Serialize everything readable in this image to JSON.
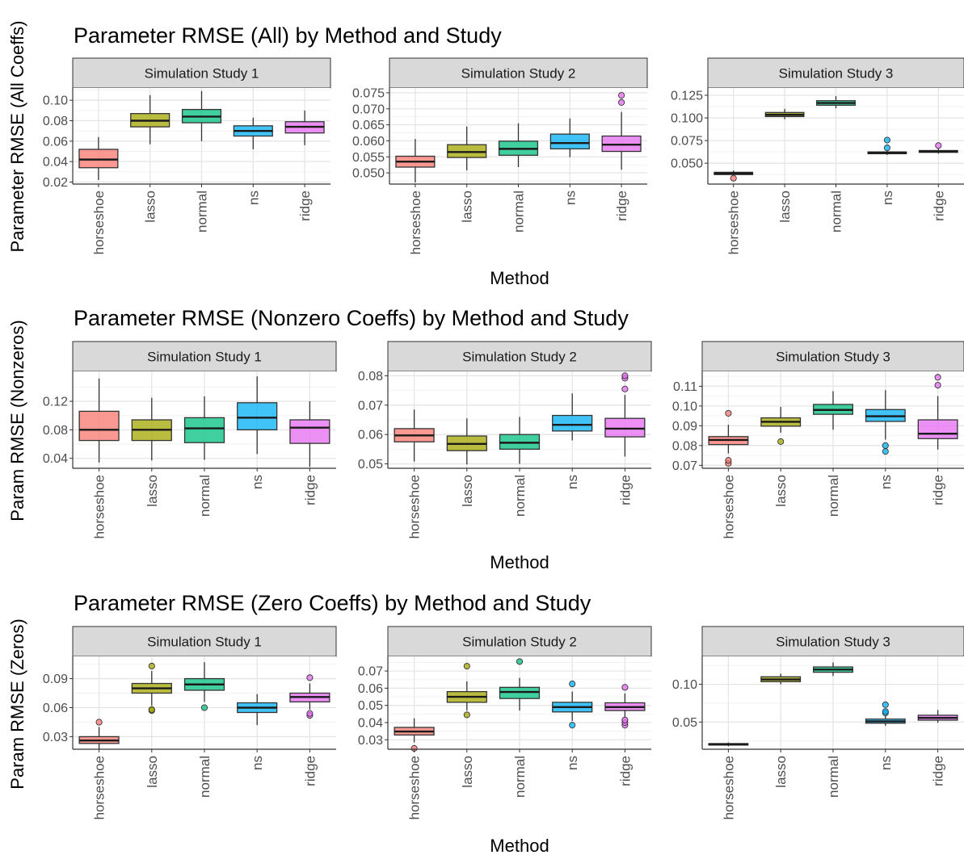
{
  "figure": {
    "x_axis_label": "Method",
    "facet_label_prefix": "Simulation Study",
    "categories": [
      "horseshoe",
      "lasso",
      "normal",
      "ns",
      "ridge"
    ],
    "colors": {
      "horseshoe": "#F8766D",
      "lasso": "#A3A500",
      "normal": "#00BF7D",
      "ns": "#00B0F6",
      "ridge": "#E76BF3"
    }
  },
  "chart_data": [
    {
      "type": "box",
      "title": "Parameter RMSE (All) by Method and Study",
      "ylabel": "Parameter RMSE (All Coeffs)",
      "xlabel": "Method",
      "panels": [
        {
          "facet": "Simulation Study 1",
          "ylim": [
            0.018,
            0.112
          ],
          "yticks": [
            "0.02",
            "0.04",
            "0.06",
            "0.08",
            "0.10"
          ],
          "boxes": [
            {
              "category": "horseshoe",
              "q1": 0.034,
              "median": 0.042,
              "q3": 0.052,
              "lower": 0.022,
              "upper": 0.064,
              "outliers": []
            },
            {
              "category": "lasso",
              "q1": 0.074,
              "median": 0.08,
              "q3": 0.087,
              "lower": 0.057,
              "upper": 0.105,
              "outliers": []
            },
            {
              "category": "normal",
              "q1": 0.078,
              "median": 0.084,
              "q3": 0.091,
              "lower": 0.06,
              "upper": 0.109,
              "outliers": []
            },
            {
              "category": "ns",
              "q1": 0.065,
              "median": 0.07,
              "q3": 0.075,
              "lower": 0.052,
              "upper": 0.083,
              "outliers": []
            },
            {
              "category": "ridge",
              "q1": 0.068,
              "median": 0.074,
              "q3": 0.079,
              "lower": 0.056,
              "upper": 0.09,
              "outliers": []
            }
          ]
        },
        {
          "facet": "Simulation Study 2",
          "ylim": [
            0.0465,
            0.0765
          ],
          "yticks": [
            "0.050",
            "0.055",
            "0.060",
            "0.065",
            "0.070",
            "0.075"
          ],
          "boxes": [
            {
              "category": "horseshoe",
              "q1": 0.0518,
              "median": 0.0535,
              "q3": 0.0552,
              "lower": 0.047,
              "upper": 0.0606,
              "outliers": []
            },
            {
              "category": "lasso",
              "q1": 0.0548,
              "median": 0.0565,
              "q3": 0.0588,
              "lower": 0.0508,
              "upper": 0.0645,
              "outliers": []
            },
            {
              "category": "normal",
              "q1": 0.0555,
              "median": 0.0575,
              "q3": 0.0599,
              "lower": 0.0518,
              "upper": 0.0655,
              "outliers": []
            },
            {
              "category": "ns",
              "q1": 0.0575,
              "median": 0.0593,
              "q3": 0.0621,
              "lower": 0.0549,
              "upper": 0.067,
              "outliers": []
            },
            {
              "category": "ridge",
              "q1": 0.0567,
              "median": 0.0588,
              "q3": 0.0615,
              "lower": 0.051,
              "upper": 0.069,
              "outliers": [
                0.072,
                0.0742
              ]
            }
          ]
        },
        {
          "facet": "Simulation Study 3",
          "ylim": [
            0.027,
            0.133
          ],
          "yticks": [
            "0.050",
            "0.075",
            "0.100",
            "0.125"
          ],
          "boxes": [
            {
              "category": "horseshoe",
              "q1": 0.0375,
              "median": 0.0388,
              "q3": 0.04,
              "lower": 0.0355,
              "upper": 0.042,
              "outliers": [
                0.0335
              ]
            },
            {
              "category": "lasso",
              "q1": 0.1015,
              "median": 0.1035,
              "q3": 0.106,
              "lower": 0.0985,
              "upper": 0.11,
              "outliers": []
            },
            {
              "category": "normal",
              "q1": 0.114,
              "median": 0.1165,
              "q3": 0.119,
              "lower": 0.1105,
              "upper": 0.124,
              "outliers": []
            },
            {
              "category": "ns",
              "q1": 0.0605,
              "median": 0.0615,
              "q3": 0.0625,
              "lower": 0.059,
              "upper": 0.0645,
              "outliers": [
                0.067,
                0.0755
              ]
            },
            {
              "category": "ridge",
              "q1": 0.062,
              "median": 0.063,
              "q3": 0.064,
              "lower": 0.0605,
              "upper": 0.0665,
              "outliers": [
                0.0695
              ]
            }
          ]
        }
      ]
    },
    {
      "type": "box",
      "title": "Parameter RMSE (Nonzero Coeffs) by Method and Study",
      "ylabel": "Param RMSE (Nonzeros)",
      "xlabel": "Method",
      "panels": [
        {
          "facet": "Simulation Study 1",
          "ylim": [
            0.026,
            0.162
          ],
          "yticks": [
            "0.04",
            "0.08",
            "0.12"
          ],
          "boxes": [
            {
              "category": "horseshoe",
              "q1": 0.065,
              "median": 0.08,
              "q3": 0.106,
              "lower": 0.034,
              "upper": 0.152,
              "outliers": []
            },
            {
              "category": "lasso",
              "q1": 0.065,
              "median": 0.08,
              "q3": 0.094,
              "lower": 0.037,
              "upper": 0.125,
              "outliers": []
            },
            {
              "category": "normal",
              "q1": 0.062,
              "median": 0.082,
              "q3": 0.097,
              "lower": 0.038,
              "upper": 0.127,
              "outliers": []
            },
            {
              "category": "ns",
              "q1": 0.08,
              "median": 0.097,
              "q3": 0.118,
              "lower": 0.046,
              "upper": 0.155,
              "outliers": []
            },
            {
              "category": "ridge",
              "q1": 0.061,
              "median": 0.083,
              "q3": 0.094,
              "lower": 0.028,
              "upper": 0.12,
              "outliers": []
            }
          ]
        },
        {
          "facet": "Simulation Study 2",
          "ylim": [
            0.0485,
            0.0815
          ],
          "yticks": [
            "0.05",
            "0.06",
            "0.07",
            "0.08"
          ],
          "boxes": [
            {
              "category": "horseshoe",
              "q1": 0.0575,
              "median": 0.0597,
              "q3": 0.062,
              "lower": 0.0508,
              "upper": 0.0685,
              "outliers": []
            },
            {
              "category": "lasso",
              "q1": 0.0545,
              "median": 0.0568,
              "q3": 0.0595,
              "lower": 0.0498,
              "upper": 0.0655,
              "outliers": []
            },
            {
              "category": "normal",
              "q1": 0.055,
              "median": 0.0572,
              "q3": 0.06,
              "lower": 0.05,
              "upper": 0.066,
              "outliers": []
            },
            {
              "category": "ns",
              "q1": 0.0612,
              "median": 0.0633,
              "q3": 0.0665,
              "lower": 0.058,
              "upper": 0.074,
              "outliers": []
            },
            {
              "category": "ridge",
              "q1": 0.0592,
              "median": 0.062,
              "q3": 0.0655,
              "lower": 0.0525,
              "upper": 0.0735,
              "outliers": [
                0.0755,
                0.0792,
                0.08
              ]
            }
          ]
        },
        {
          "facet": "Simulation Study 3",
          "ylim": [
            0.0685,
            0.1175
          ],
          "yticks": [
            "0.07",
            "0.08",
            "0.09",
            "0.10",
            "0.11"
          ],
          "boxes": [
            {
              "category": "horseshoe",
              "q1": 0.0805,
              "median": 0.0828,
              "q3": 0.0845,
              "lower": 0.076,
              "upper": 0.0905,
              "outliers": [
                0.071,
                0.0725,
                0.0963
              ]
            },
            {
              "category": "lasso",
              "q1": 0.0898,
              "median": 0.092,
              "q3": 0.094,
              "lower": 0.0865,
              "upper": 0.0995,
              "outliers": [
                0.082
              ]
            },
            {
              "category": "normal",
              "q1": 0.0958,
              "median": 0.098,
              "q3": 0.1008,
              "lower": 0.088,
              "upper": 0.1075,
              "outliers": []
            },
            {
              "category": "ns",
              "q1": 0.0922,
              "median": 0.0948,
              "q3": 0.0982,
              "lower": 0.083,
              "upper": 0.108,
              "outliers": [
                0.077,
                0.08
              ]
            },
            {
              "category": "ridge",
              "q1": 0.0835,
              "median": 0.086,
              "q3": 0.093,
              "lower": 0.078,
              "upper": 0.105,
              "outliers": [
                0.1105,
                0.1145
              ]
            }
          ]
        }
      ]
    },
    {
      "type": "box",
      "title": "Parameter RMSE (Zero Coeffs) by Method and Study",
      "ylabel": "Param RMSE (Zeros)",
      "xlabel": "Method",
      "panels": [
        {
          "facet": "Simulation Study 1",
          "ylim": [
            0.017,
            0.113
          ],
          "yticks": [
            "0.03",
            "0.06",
            "0.09"
          ],
          "boxes": [
            {
              "category": "horseshoe",
              "q1": 0.023,
              "median": 0.026,
              "q3": 0.03,
              "lower": 0.017,
              "upper": 0.04,
              "outliers": [
                0.045
              ]
            },
            {
              "category": "lasso",
              "q1": 0.075,
              "median": 0.08,
              "q3": 0.085,
              "lower": 0.062,
              "upper": 0.098,
              "outliers": [
                0.057,
                0.058,
                0.103
              ]
            },
            {
              "category": "normal",
              "q1": 0.078,
              "median": 0.084,
              "q3": 0.09,
              "lower": 0.066,
              "upper": 0.107,
              "outliers": [
                0.06
              ]
            },
            {
              "category": "ns",
              "q1": 0.055,
              "median": 0.06,
              "q3": 0.065,
              "lower": 0.042,
              "upper": 0.074,
              "outliers": []
            },
            {
              "category": "ridge",
              "q1": 0.066,
              "median": 0.071,
              "q3": 0.075,
              "lower": 0.058,
              "upper": 0.085,
              "outliers": [
                0.052,
                0.054,
                0.091
              ]
            }
          ]
        },
        {
          "facet": "Simulation Study 2",
          "ylim": [
            0.0245,
            0.0785
          ],
          "yticks": [
            "0.03",
            "0.04",
            "0.05",
            "0.06",
            "0.07"
          ],
          "boxes": [
            {
              "category": "horseshoe",
              "q1": 0.0328,
              "median": 0.0348,
              "q3": 0.0372,
              "lower": 0.0285,
              "upper": 0.0425,
              "outliers": [
                0.025
              ]
            },
            {
              "category": "lasso",
              "q1": 0.0518,
              "median": 0.055,
              "q3": 0.058,
              "lower": 0.047,
              "upper": 0.064,
              "outliers": [
                0.0445,
                0.0728
              ]
            },
            {
              "category": "normal",
              "q1": 0.054,
              "median": 0.0578,
              "q3": 0.0605,
              "lower": 0.047,
              "upper": 0.066,
              "outliers": [
                0.0755
              ]
            },
            {
              "category": "ns",
              "q1": 0.0462,
              "median": 0.049,
              "q3": 0.0518,
              "lower": 0.041,
              "upper": 0.058,
              "outliers": [
                0.0385,
                0.0625
              ]
            },
            {
              "category": "ridge",
              "q1": 0.047,
              "median": 0.049,
              "q3": 0.0515,
              "lower": 0.043,
              "upper": 0.057,
              "outliers": [
                0.0385,
                0.04,
                0.0415,
                0.0605
              ]
            }
          ]
        },
        {
          "facet": "Simulation Study 3",
          "ylim": [
            0.014,
            0.137
          ],
          "yticks": [
            "0.05",
            "0.10"
          ],
          "boxes": [
            {
              "category": "horseshoe",
              "q1": 0.0195,
              "median": 0.0205,
              "q3": 0.0215,
              "lower": 0.018,
              "upper": 0.023,
              "outliers": []
            },
            {
              "category": "lasso",
              "q1": 0.1035,
              "median": 0.1065,
              "q3": 0.11,
              "lower": 0.1,
              "upper": 0.114,
              "outliers": []
            },
            {
              "category": "normal",
              "q1": 0.116,
              "median": 0.1195,
              "q3": 0.123,
              "lower": 0.111,
              "upper": 0.129,
              "outliers": []
            },
            {
              "category": "ns",
              "q1": 0.0485,
              "median": 0.051,
              "q3": 0.054,
              "lower": 0.045,
              "upper": 0.059,
              "outliers": [
                0.062,
                0.064,
                0.073
              ]
            },
            {
              "category": "ridge",
              "q1": 0.0525,
              "median": 0.0555,
              "q3": 0.059,
              "lower": 0.049,
              "upper": 0.066,
              "outliers": []
            }
          ]
        }
      ]
    }
  ]
}
